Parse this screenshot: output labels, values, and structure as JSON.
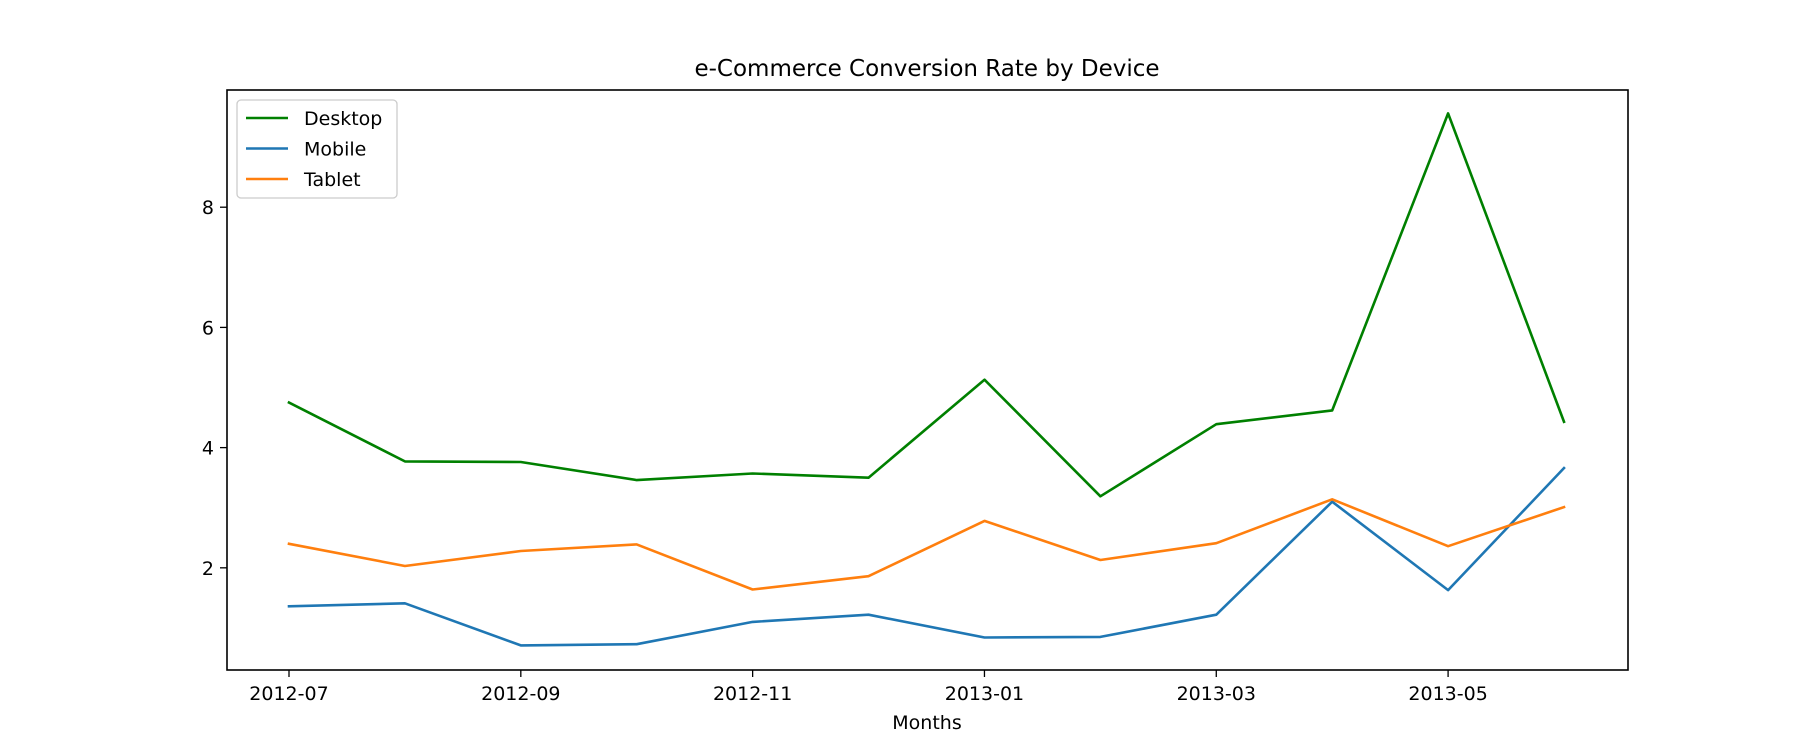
{
  "chart_data": {
    "type": "line",
    "title": "e-Commerce Conversion Rate by Device",
    "xlabel": "Months",
    "ylabel": "",
    "x": [
      "2012-07",
      "2012-08",
      "2012-09",
      "2012-10",
      "2012-11",
      "2012-12",
      "2013-01",
      "2013-02",
      "2013-03",
      "2013-04",
      "2013-05",
      "2013-06"
    ],
    "x_ticks": [
      "2012-07",
      "2012-09",
      "2012-11",
      "2013-01",
      "2013-03",
      "2013-05"
    ],
    "y_ticks": [
      2,
      4,
      6,
      8
    ],
    "ylim": [
      0.3,
      9.95
    ],
    "grid": false,
    "legend_position": "top-left",
    "series": [
      {
        "name": "Desktop",
        "color": "#008000",
        "values": [
          4.75,
          3.77,
          3.76,
          3.46,
          3.57,
          3.5,
          5.13,
          3.19,
          4.39,
          4.62,
          9.56,
          4.43
        ]
      },
      {
        "name": "Mobile",
        "color": "#1f77b4",
        "values": [
          1.36,
          1.41,
          0.71,
          0.73,
          1.1,
          1.22,
          0.84,
          0.85,
          1.22,
          3.1,
          1.63,
          3.66
        ]
      },
      {
        "name": "Tablet",
        "color": "#ff7f0e",
        "values": [
          2.4,
          2.03,
          2.28,
          2.39,
          1.64,
          1.86,
          2.78,
          2.13,
          2.41,
          3.14,
          2.36,
          3.01
        ]
      }
    ]
  }
}
